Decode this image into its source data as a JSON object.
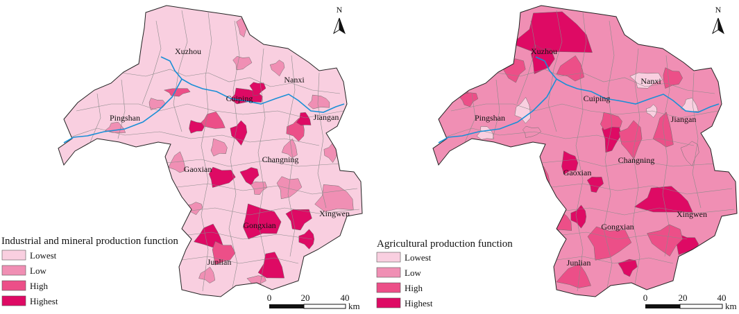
{
  "palette": {
    "lowest": "#f9cfe0",
    "low": "#f08fb4",
    "high": "#ec4f88",
    "highest": "#de0a64"
  },
  "panels": [
    {
      "title": "Industrial and mineral production function",
      "legend": [
        "Lowest",
        "Low",
        "High",
        "Highest"
      ],
      "north": "N",
      "scale": {
        "ticks": [
          "0",
          "20",
          "40"
        ],
        "unit": "km"
      },
      "places": [
        "Xuzhou",
        "Nanxi",
        "Cuiping",
        "Pingshan",
        "Jiangan",
        "Changning",
        "Gaoxian",
        "Gongxian",
        "Xingwen",
        "Junlian"
      ],
      "levels": {
        "base": "lowest"
      }
    },
    {
      "title": "Agricultural production function",
      "legend": [
        "Lowest",
        "Low",
        "High",
        "Highest"
      ],
      "north": "N",
      "scale": {
        "ticks": [
          "0",
          "20",
          "40"
        ],
        "unit": "km"
      },
      "places": [
        "Xuzhou",
        "Nanxi",
        "Cuiping",
        "Pingshan",
        "Jiangan",
        "Changning",
        "Gaoxian",
        "Gongxian",
        "Xingwen",
        "Junlian"
      ],
      "levels": {
        "base": "low"
      }
    }
  ]
}
